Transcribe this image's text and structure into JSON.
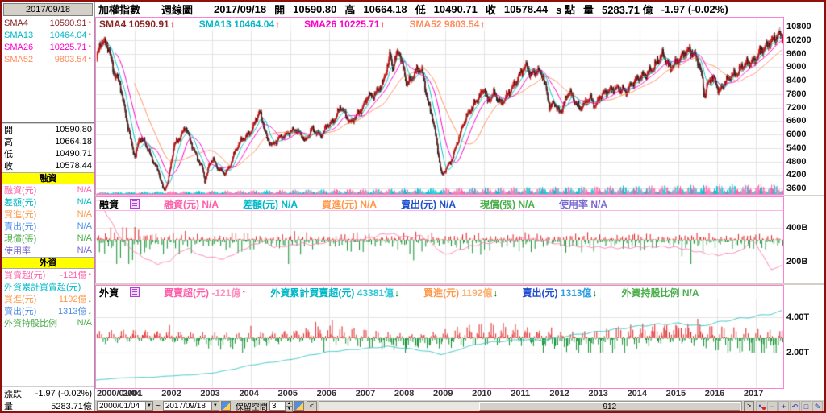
{
  "titlebar": {
    "date": "2017/09/18"
  },
  "header": {
    "instrument": "加權指數",
    "period": "週線圖",
    "date": "2017/09/18",
    "open_label": "開",
    "open": "10590.80",
    "high_label": "高",
    "high": "10664.18",
    "low_label": "低",
    "low": "10490.71",
    "close_label": "收",
    "close": "10578.44",
    "close_suffix": "s 點",
    "vol_label": "量",
    "volume": "5283.71 億",
    "change": "-1.97 (-0.02%)"
  },
  "sma": [
    {
      "label": "SMA4",
      "value": "10590.91",
      "color": "#8a2525",
      "arrow": "up"
    },
    {
      "label": "SMA13",
      "value": "10464.04",
      "color": "#00b8c8",
      "arrow": "up"
    },
    {
      "label": "SMA26",
      "value": "10225.71",
      "color": "#ff00cc",
      "arrow": "up"
    },
    {
      "label": "SMA52",
      "value": "9803.54",
      "color": "#ff8c5a",
      "arrow": "up"
    }
  ],
  "sidebar": {
    "ohlc": [
      {
        "label": "開",
        "value": "10590.80"
      },
      {
        "label": "高",
        "value": "10664.18"
      },
      {
        "label": "低",
        "value": "10490.71"
      },
      {
        "label": "收",
        "value": "10578.44"
      }
    ],
    "sections": [
      {
        "title": "融資",
        "rows": [
          {
            "label": "融資(元)",
            "value": "N/A",
            "color": "#ff5fa8"
          },
          {
            "label": "差額(元)",
            "value": "N/A",
            "color": "#00b8c8"
          },
          {
            "label": "買進(元)",
            "value": "N/A",
            "color": "#ff9a4d"
          },
          {
            "label": "賣出(元)",
            "value": "N/A",
            "color": "#4f8fe8"
          },
          {
            "label": "現償(張)",
            "value": "N/A",
            "color": "#4aae4a"
          },
          {
            "label": "使用率",
            "value": "N/A",
            "color": "#7a6ad0"
          }
        ]
      },
      {
        "title": "外資",
        "rows": [
          {
            "label": "買賣超(元)",
            "value": "-121億",
            "color": "#ff5fa8",
            "arrow": "up"
          },
          {
            "label": "外資累計買賣超(元)",
            "value": "",
            "color": "#00b8c8"
          },
          {
            "label": "買進(元)",
            "value": "1192億",
            "color": "#ff9a4d",
            "arrow": "down"
          },
          {
            "label": "賣出(元)",
            "value": "1313億",
            "color": "#4f8fe8",
            "arrow": "down"
          },
          {
            "label": "外資持股比例",
            "value": "N/A",
            "color": "#4aae4a"
          }
        ]
      }
    ],
    "change_row": {
      "label": "漲跌",
      "value": "-1.97 (-0.02%)"
    },
    "volume_row": {
      "label": "量",
      "value": "5283.71億"
    }
  },
  "pane2_legend": {
    "title": "融資",
    "items": [
      {
        "label": "融資(元)",
        "value": "N/A",
        "color": "#ff5fa8"
      },
      {
        "label": "差額(元)",
        "value": "N/A",
        "color": "#00b8c8"
      },
      {
        "label": "買進(元)",
        "value": "N/A",
        "color": "#ff9a4d"
      },
      {
        "label": "賣出(元)",
        "value": "N/A",
        "color": "#1f4fd0"
      },
      {
        "label": "現償(張)",
        "value": "N/A",
        "color": "#4aae4a"
      },
      {
        "label": "使用率",
        "value": "N/A",
        "color": "#7a6ad0"
      }
    ]
  },
  "pane3_legend": {
    "title": "外資",
    "items": [
      {
        "label": "買賣超(元)",
        "value": "-121億",
        "color": "#ff5fa8",
        "value_color": "#ff8fbf",
        "arrow": "up"
      },
      {
        "label": "外資累計買賣超(元)",
        "value": "43381億",
        "color": "#00b8c8",
        "value_color": "#2fc8d8",
        "arrow": "down"
      },
      {
        "label": "買進(元)",
        "value": "1192億",
        "color": "#ff9a4d",
        "value_color": "#ffb070",
        "arrow": "down"
      },
      {
        "label": "賣出(元)",
        "value": "1313億",
        "color": "#1f4fd0",
        "value_color": "#2f9fe0",
        "arrow": "down"
      },
      {
        "label": "外資持股比例",
        "value": "N/A",
        "color": "#4aae4a",
        "value_color": "#4aae4a"
      }
    ]
  },
  "axes": {
    "main_ticks": [
      10800,
      10200,
      9600,
      9000,
      8400,
      7800,
      7200,
      6600,
      6000,
      5400,
      4800,
      4200,
      3600
    ],
    "pane2_ticks": [
      {
        "label": "400B",
        "y": 38
      },
      {
        "label": "200B",
        "y": 80
      }
    ],
    "pane3_ticks": [
      {
        "label": "4.00T",
        "y": 39
      },
      {
        "label": "2.00T",
        "y": 83
      }
    ],
    "x_first_label": "2000/01/04",
    "x_years": [
      "2001",
      "2002",
      "2003",
      "2004",
      "2005",
      "2006",
      "2007",
      "2008",
      "2009",
      "2010",
      "2011",
      "2012",
      "2013",
      "2014",
      "2015",
      "2016",
      "2017"
    ]
  },
  "toolbar": {
    "from": "2000/01/04",
    "tilde": "~",
    "to": "2017/09/18",
    "keep_label": "保留空間",
    "keep_value": "3",
    "left_arrow": "<",
    "scroll_value": "912",
    "right_arrow": ">",
    "icons": [
      {
        "name": "pointer-tool-icon",
        "glyph": "↖",
        "badge": true
      },
      {
        "name": "zoom-out-icon",
        "glyph": "−"
      },
      {
        "name": "zoom-in-icon",
        "glyph": "+"
      },
      {
        "name": "undo-icon",
        "glyph": "↶"
      },
      {
        "name": "selection-box-icon",
        "glyph": "□"
      },
      {
        "name": "draw-tool-icon",
        "glyph": "✎"
      }
    ]
  },
  "chart_data": {
    "type": "candlestick",
    "title": "加權指數 週線圖 (TAIEX weekly, 2000/01/04 - 2017/09/18)",
    "weeks": 912,
    "weeks_per_year": 51.5,
    "candle_up_color": "#dd1111",
    "candle_down_color": "#1a1a1a",
    "sma_colors": {
      "sma4": "#8a2525",
      "sma13": "#00c8d0",
      "sma26": "#ff00d0",
      "sma52": "#ff9060"
    },
    "main": {
      "ylim": [
        3000,
        11000
      ],
      "ticks": [
        10800,
        10200,
        9600,
        9000,
        8400,
        7800,
        7200,
        6600,
        6000,
        5400,
        4800,
        4200,
        3600
      ],
      "price_anchors": [
        [
          0,
          9350
        ],
        [
          0.12,
          10150
        ],
        [
          0.3,
          9950
        ],
        [
          0.45,
          8750
        ],
        [
          0.6,
          8300
        ],
        [
          0.75,
          6900
        ],
        [
          0.9,
          5600
        ],
        [
          1.0,
          4950
        ],
        [
          1.1,
          5850
        ],
        [
          1.25,
          5650
        ],
        [
          1.45,
          4850
        ],
        [
          1.6,
          4350
        ],
        [
          1.7,
          3700
        ],
        [
          1.74,
          3480
        ],
        [
          1.85,
          3950
        ],
        [
          2.0,
          5550
        ],
        [
          2.15,
          5850
        ],
        [
          2.3,
          6350
        ],
        [
          2.45,
          5550
        ],
        [
          2.6,
          4950
        ],
        [
          2.73,
          4520
        ],
        [
          2.8,
          3920
        ],
        [
          2.9,
          4620
        ],
        [
          3.0,
          4940
        ],
        [
          3.1,
          4550
        ],
        [
          3.3,
          4260
        ],
        [
          3.42,
          4500
        ],
        [
          3.55,
          5150
        ],
        [
          3.7,
          5700
        ],
        [
          3.85,
          5890
        ],
        [
          4.0,
          6180
        ],
        [
          4.13,
          6750
        ],
        [
          4.2,
          7020
        ],
        [
          4.32,
          6350
        ],
        [
          4.4,
          5750
        ],
        [
          4.55,
          5520
        ],
        [
          4.7,
          5840
        ],
        [
          4.85,
          5950
        ],
        [
          5.0,
          6140
        ],
        [
          5.15,
          6190
        ],
        [
          5.3,
          5950
        ],
        [
          5.38,
          5680
        ],
        [
          5.55,
          6250
        ],
        [
          5.7,
          6050
        ],
        [
          5.8,
          5950
        ],
        [
          5.95,
          6420
        ],
        [
          6.1,
          6550
        ],
        [
          6.3,
          7250
        ],
        [
          6.42,
          6850
        ],
        [
          6.55,
          6500
        ],
        [
          6.7,
          6850
        ],
        [
          6.85,
          7150
        ],
        [
          7.0,
          7750
        ],
        [
          7.1,
          7680
        ],
        [
          7.25,
          7950
        ],
        [
          7.4,
          8350
        ],
        [
          7.52,
          9250
        ],
        [
          7.57,
          9550
        ],
        [
          7.63,
          8950
        ],
        [
          7.72,
          9450
        ],
        [
          7.8,
          9750
        ],
        [
          7.9,
          8950
        ],
        [
          8.0,
          8250
        ],
        [
          8.1,
          8450
        ],
        [
          8.3,
          8950
        ],
        [
          8.4,
          8750
        ],
        [
          8.55,
          7350
        ],
        [
          8.65,
          6850
        ],
        [
          8.75,
          5850
        ],
        [
          8.85,
          4650
        ],
        [
          8.9,
          4150
        ],
        [
          9.0,
          4450
        ],
        [
          9.15,
          4850
        ],
        [
          9.3,
          5650
        ],
        [
          9.45,
          6450
        ],
        [
          9.55,
          6850
        ],
        [
          9.7,
          7250
        ],
        [
          9.85,
          7650
        ],
        [
          10.0,
          8050
        ],
        [
          10.08,
          7450
        ],
        [
          10.25,
          7850
        ],
        [
          10.42,
          7350
        ],
        [
          10.55,
          7650
        ],
        [
          10.7,
          8050
        ],
        [
          10.85,
          8450
        ],
        [
          11.0,
          8950
        ],
        [
          11.08,
          9050
        ],
        [
          11.2,
          8650
        ],
        [
          11.35,
          8850
        ],
        [
          11.5,
          8650
        ],
        [
          11.62,
          7750
        ],
        [
          11.68,
          7150
        ],
        [
          11.8,
          7450
        ],
        [
          11.93,
          6950
        ],
        [
          12.0,
          7150
        ],
        [
          12.18,
          7950
        ],
        [
          12.3,
          7550
        ],
        [
          12.45,
          7150
        ],
        [
          12.6,
          7400
        ],
        [
          12.72,
          7650
        ],
        [
          12.85,
          7250
        ],
        [
          13.0,
          7750
        ],
        [
          13.2,
          7950
        ],
        [
          13.4,
          8050
        ],
        [
          13.55,
          8000
        ],
        [
          13.65,
          7900
        ],
        [
          13.8,
          8250
        ],
        [
          14.0,
          8550
        ],
        [
          14.15,
          8650
        ],
        [
          14.35,
          8950
        ],
        [
          14.52,
          9450
        ],
        [
          14.6,
          9550
        ],
        [
          14.72,
          9150
        ],
        [
          14.78,
          8950
        ],
        [
          14.9,
          9150
        ],
        [
          15.0,
          9300
        ],
        [
          15.15,
          9620
        ],
        [
          15.3,
          9750
        ],
        [
          15.45,
          9450
        ],
        [
          15.55,
          9000
        ],
        [
          15.62,
          8350
        ],
        [
          15.66,
          7650
        ],
        [
          15.75,
          8250
        ],
        [
          15.85,
          8550
        ],
        [
          15.95,
          8350
        ],
        [
          16.05,
          7900
        ],
        [
          16.2,
          8350
        ],
        [
          16.35,
          8600
        ],
        [
          16.5,
          8700
        ],
        [
          16.65,
          9050
        ],
        [
          16.8,
          9200
        ],
        [
          16.95,
          9250
        ],
        [
          17.1,
          9700
        ],
        [
          17.25,
          9900
        ],
        [
          17.4,
          10150
        ],
        [
          17.5,
          10300
        ],
        [
          17.6,
          10480
        ],
        [
          17.66,
          10350
        ],
        [
          17.71,
          10578
        ]
      ]
    },
    "margin_pane": {
      "tick_labels": [
        "400B",
        "200B"
      ],
      "line_color": "#ff7fb2",
      "bar_up_color": "#e02020",
      "bar_down_color": "#0f8f2f",
      "line_anchors": [
        [
          0,
          560
        ],
        [
          0.15,
          545
        ],
        [
          0.3,
          470
        ],
        [
          0.5,
          390
        ],
        [
          0.7,
          320
        ],
        [
          0.9,
          280
        ],
        [
          1.0,
          255
        ],
        [
          1.3,
          215
        ],
        [
          1.6,
          185
        ],
        [
          1.9,
          205
        ],
        [
          2.2,
          265
        ],
        [
          2.4,
          275
        ],
        [
          2.7,
          235
        ],
        [
          3.0,
          225
        ],
        [
          3.3,
          215
        ],
        [
          3.6,
          250
        ],
        [
          4.0,
          295
        ],
        [
          4.3,
          320
        ],
        [
          4.6,
          285
        ],
        [
          5.0,
          295
        ],
        [
          5.3,
          308
        ],
        [
          5.6,
          300
        ],
        [
          6.0,
          318
        ],
        [
          6.3,
          330
        ],
        [
          6.6,
          322
        ],
        [
          7.0,
          338
        ],
        [
          7.5,
          368
        ],
        [
          7.8,
          355
        ],
        [
          8.0,
          345
        ],
        [
          8.4,
          352
        ],
        [
          8.7,
          295
        ],
        [
          9.0,
          240
        ],
        [
          9.3,
          265
        ],
        [
          9.6,
          288
        ],
        [
          10.0,
          308
        ],
        [
          10.5,
          318
        ],
        [
          11.0,
          338
        ],
        [
          11.5,
          328
        ],
        [
          12.0,
          298
        ],
        [
          12.5,
          290
        ],
        [
          13.0,
          285
        ],
        [
          13.5,
          280
        ],
        [
          14.0,
          285
        ],
        [
          14.5,
          290
        ],
        [
          15.0,
          283
        ],
        [
          15.5,
          258
        ],
        [
          16.0,
          238
        ],
        [
          16.3,
          248
        ],
        [
          16.6,
          262
        ],
        [
          16.8,
          302
        ],
        [
          16.9,
          322
        ],
        [
          17.0,
          312
        ],
        [
          17.1,
          268
        ],
        [
          17.25,
          208
        ],
        [
          17.4,
          155
        ],
        [
          17.55,
          162
        ],
        [
          17.71,
          185
        ]
      ]
    },
    "foreign_pane": {
      "tick_labels": [
        "4.00T",
        "2.00T"
      ],
      "line_color": "#3fc6c6",
      "bar_up_color": "#e02020",
      "bar_down_color": "#0f8f2f",
      "cumulative_anchors": [
        [
          0,
          0.45
        ],
        [
          0.5,
          0.55
        ],
        [
          1.0,
          0.6
        ],
        [
          1.5,
          0.62
        ],
        [
          2.0,
          0.7
        ],
        [
          2.5,
          0.75
        ],
        [
          3.0,
          0.85
        ],
        [
          3.5,
          1.05
        ],
        [
          4.0,
          1.3
        ],
        [
          4.5,
          1.45
        ],
        [
          5.0,
          1.6
        ],
        [
          5.5,
          1.85
        ],
        [
          6.0,
          2.05
        ],
        [
          6.5,
          2.15
        ],
        [
          7.0,
          2.25
        ],
        [
          7.5,
          2.35
        ],
        [
          8.0,
          2.25
        ],
        [
          8.6,
          2.05
        ],
        [
          8.9,
          1.9
        ],
        [
          9.2,
          2.05
        ],
        [
          9.5,
          2.3
        ],
        [
          10.0,
          2.55
        ],
        [
          10.5,
          2.65
        ],
        [
          11.0,
          2.75
        ],
        [
          11.5,
          2.7
        ],
        [
          12.0,
          2.9
        ],
        [
          12.5,
          3.05
        ],
        [
          13.0,
          3.2
        ],
        [
          13.5,
          3.35
        ],
        [
          14.0,
          3.5
        ],
        [
          14.5,
          3.6
        ],
        [
          15.0,
          3.65
        ],
        [
          15.6,
          3.5
        ],
        [
          16.0,
          3.7
        ],
        [
          16.5,
          3.9
        ],
        [
          17.0,
          4.05
        ],
        [
          17.4,
          4.2
        ],
        [
          17.71,
          4.35
        ]
      ]
    }
  }
}
